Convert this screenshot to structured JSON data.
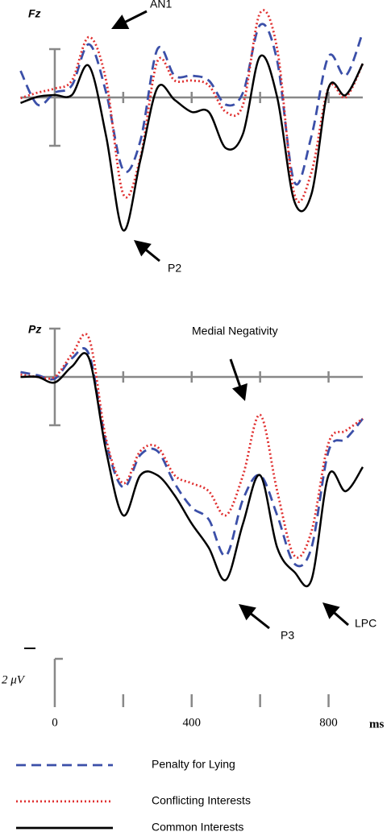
{
  "chart_data": [
    {
      "type": "line",
      "title": "Fz",
      "y_reversed": true,
      "x": [
        -100,
        -50,
        0,
        50,
        100,
        150,
        200,
        250,
        300,
        350,
        400,
        450,
        500,
        550,
        600,
        650,
        700,
        750,
        800,
        850,
        900
      ],
      "xlim": [
        -100,
        900
      ],
      "ylim": [
        -3.5,
        6
      ],
      "xticks": [
        0,
        200,
        400,
        600,
        800
      ],
      "series": [
        {
          "name": "Penalty for Lying",
          "color": "#3b4fa8",
          "dash": "dashed",
          "values": [
            -1.1,
            0.3,
            -0.2,
            -0.5,
            -2.2,
            -0.2,
            3.0,
            1.8,
            -2.0,
            -0.9,
            -0.9,
            -0.7,
            0.3,
            -0.2,
            -3.0,
            -1.5,
            3.5,
            1.6,
            -1.7,
            -0.9,
            -2.7
          ]
        },
        {
          "name": "Conflicting Interests",
          "color": "#e03030",
          "dash": "dotted",
          "values": [
            0.03,
            -0.2,
            -0.37,
            -0.7,
            -2.5,
            -0.7,
            4.0,
            2.5,
            -1.5,
            -0.7,
            -0.7,
            -0.5,
            0.6,
            0.3,
            -3.5,
            -2.0,
            4.0,
            3.1,
            -0.4,
            0.0,
            -1.4
          ]
        },
        {
          "name": "Common Interests",
          "color": "#000000",
          "dash": "solid",
          "values": [
            0.23,
            -0.03,
            -0.1,
            -0.1,
            -1.3,
            1.6,
            5.5,
            2.6,
            -0.4,
            0.1,
            0.6,
            0.6,
            2.1,
            1.5,
            -1.7,
            0.0,
            4.3,
            4.0,
            -0.4,
            -0.1,
            -1.4
          ]
        }
      ],
      "annotations": [
        "AN1",
        "P2"
      ]
    },
    {
      "type": "line",
      "title": "Pz",
      "y_reversed": true,
      "x": [
        -100,
        -50,
        0,
        50,
        100,
        150,
        200,
        250,
        300,
        350,
        400,
        450,
        500,
        550,
        600,
        650,
        700,
        750,
        800,
        850,
        900
      ],
      "xlim": [
        -100,
        900
      ],
      "ylim": [
        -2,
        9
      ],
      "xticks": [
        0,
        200,
        400,
        600,
        800
      ],
      "series": [
        {
          "name": "Penalty for Lying",
          "color": "#3b4fa8",
          "dash": "dashed",
          "values": [
            -0.2,
            -0.07,
            0.07,
            -0.77,
            -0.93,
            2.73,
            4.57,
            3.23,
            3.07,
            4.4,
            5.4,
            5.9,
            7.4,
            5.07,
            4.07,
            5.73,
            7.73,
            7.07,
            3.07,
            2.57,
            1.73
          ]
        },
        {
          "name": "Conflicting Interests",
          "color": "#e03030",
          "dash": "dotted",
          "values": [
            -0.1,
            0,
            0,
            -0.93,
            -1.6,
            2.57,
            4.4,
            3.07,
            2.9,
            4.07,
            4.4,
            4.73,
            5.73,
            4.07,
            1.57,
            4.73,
            7.4,
            6.4,
            2.73,
            2.23,
            1.73
          ]
        },
        {
          "name": "Common Interests",
          "color": "#000000",
          "dash": "solid",
          "values": [
            0,
            0,
            0.23,
            -0.43,
            -0.77,
            3.07,
            5.73,
            4.07,
            4.07,
            4.9,
            6.07,
            7.07,
            8.4,
            6.07,
            4.07,
            7.07,
            8.07,
            8.4,
            4.07,
            4.73,
            3.73
          ]
        }
      ],
      "annotations": [
        "Medial Negativity",
        "P3",
        "LPC"
      ]
    }
  ],
  "time_axis": {
    "ticks": [
      0,
      400,
      800
    ],
    "minor_ticks": [
      200,
      600
    ],
    "unit": "ms"
  },
  "scale_bar": {
    "value": 2,
    "label": "2 μV"
  }
}
